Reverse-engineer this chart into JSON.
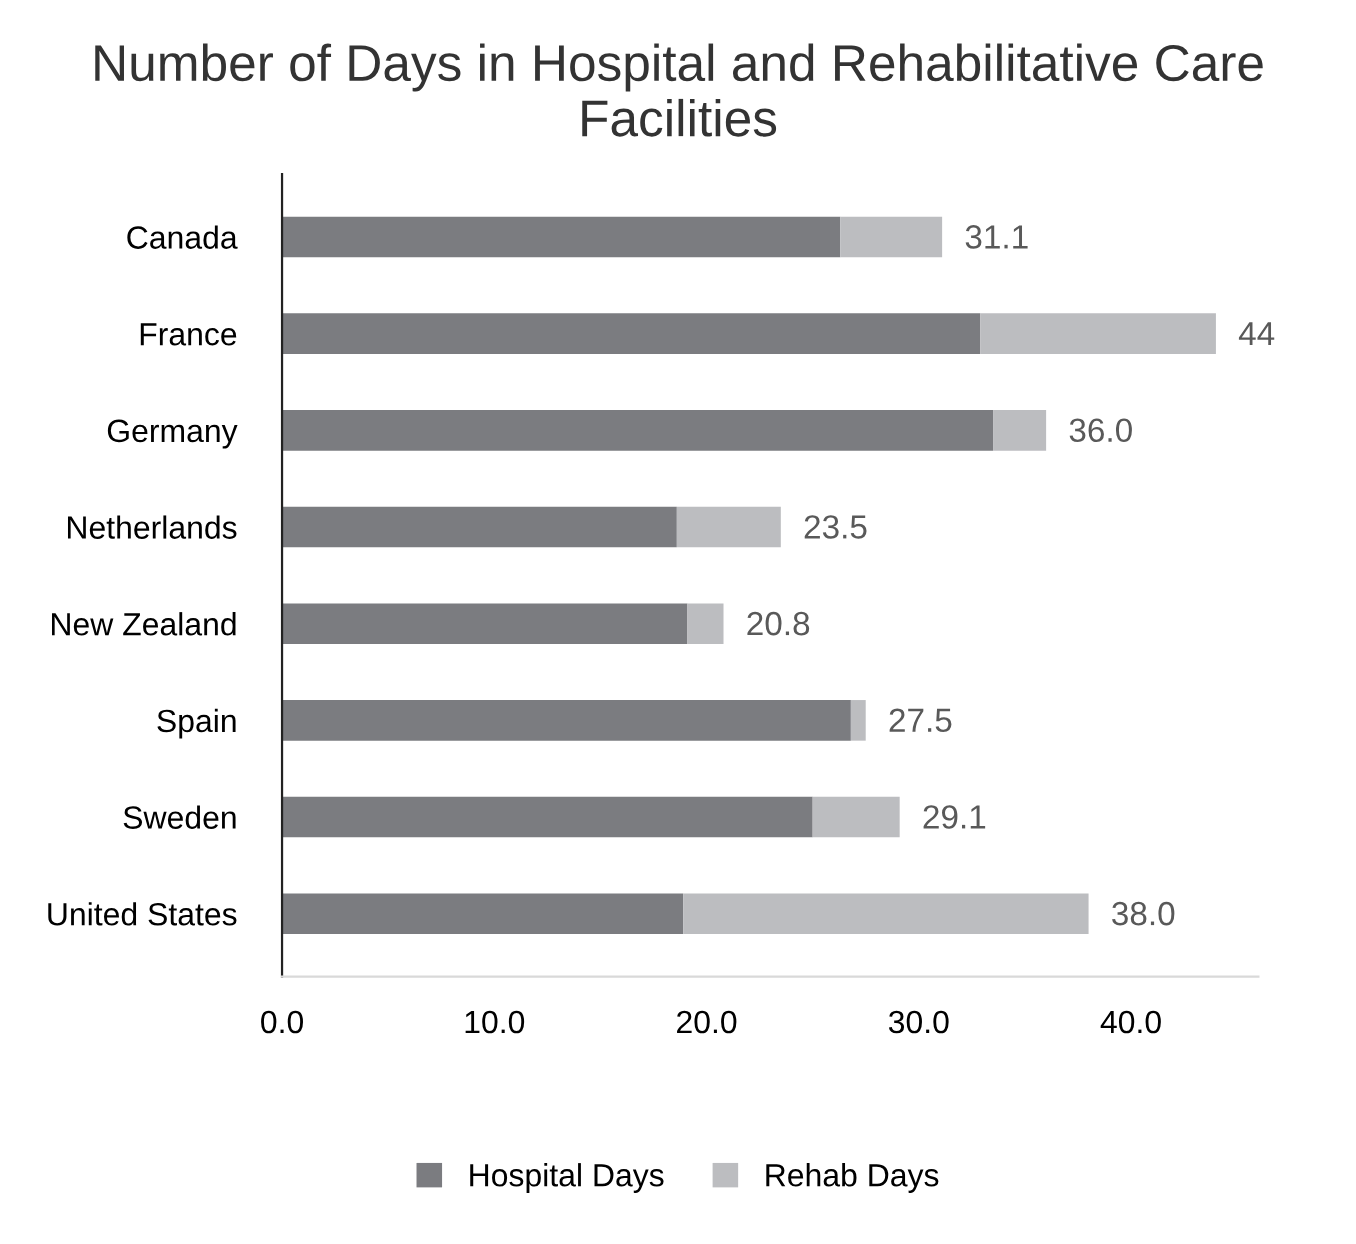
{
  "chart_data": {
    "type": "bar",
    "orientation": "horizontal",
    "stacked": true,
    "title": "Number of Days in Hospital and Rehabilitative Care Facilities",
    "categories": [
      "Canada",
      "France",
      "Germany",
      "Netherlands",
      "New Zealand",
      "Spain",
      "Sweden",
      "United States"
    ],
    "series": [
      {
        "name": "Hospital Days",
        "color": "#7b7c80",
        "values": [
          26.3,
          32.9,
          33.5,
          18.6,
          19.1,
          26.8,
          25.0,
          18.9
        ]
      },
      {
        "name": "Rehab Days",
        "color": "#bcbdc0",
        "values": [
          4.8,
          11.1,
          2.5,
          4.9,
          1.7,
          0.7,
          4.1,
          19.1
        ]
      }
    ],
    "totals": [
      "31.1",
      "44",
      "36.0",
      "23.5",
      "20.8",
      "27.5",
      "29.1",
      "38.0"
    ],
    "xlim": [
      0,
      46
    ],
    "xticks": [
      {
        "value": 0,
        "label": "0.0"
      },
      {
        "value": 10,
        "label": "10.0"
      },
      {
        "value": 20,
        "label": "20.0"
      },
      {
        "value": 30,
        "label": "30.0"
      },
      {
        "value": 40,
        "label": "40.0"
      }
    ],
    "grid": false,
    "legend": "bottom"
  }
}
